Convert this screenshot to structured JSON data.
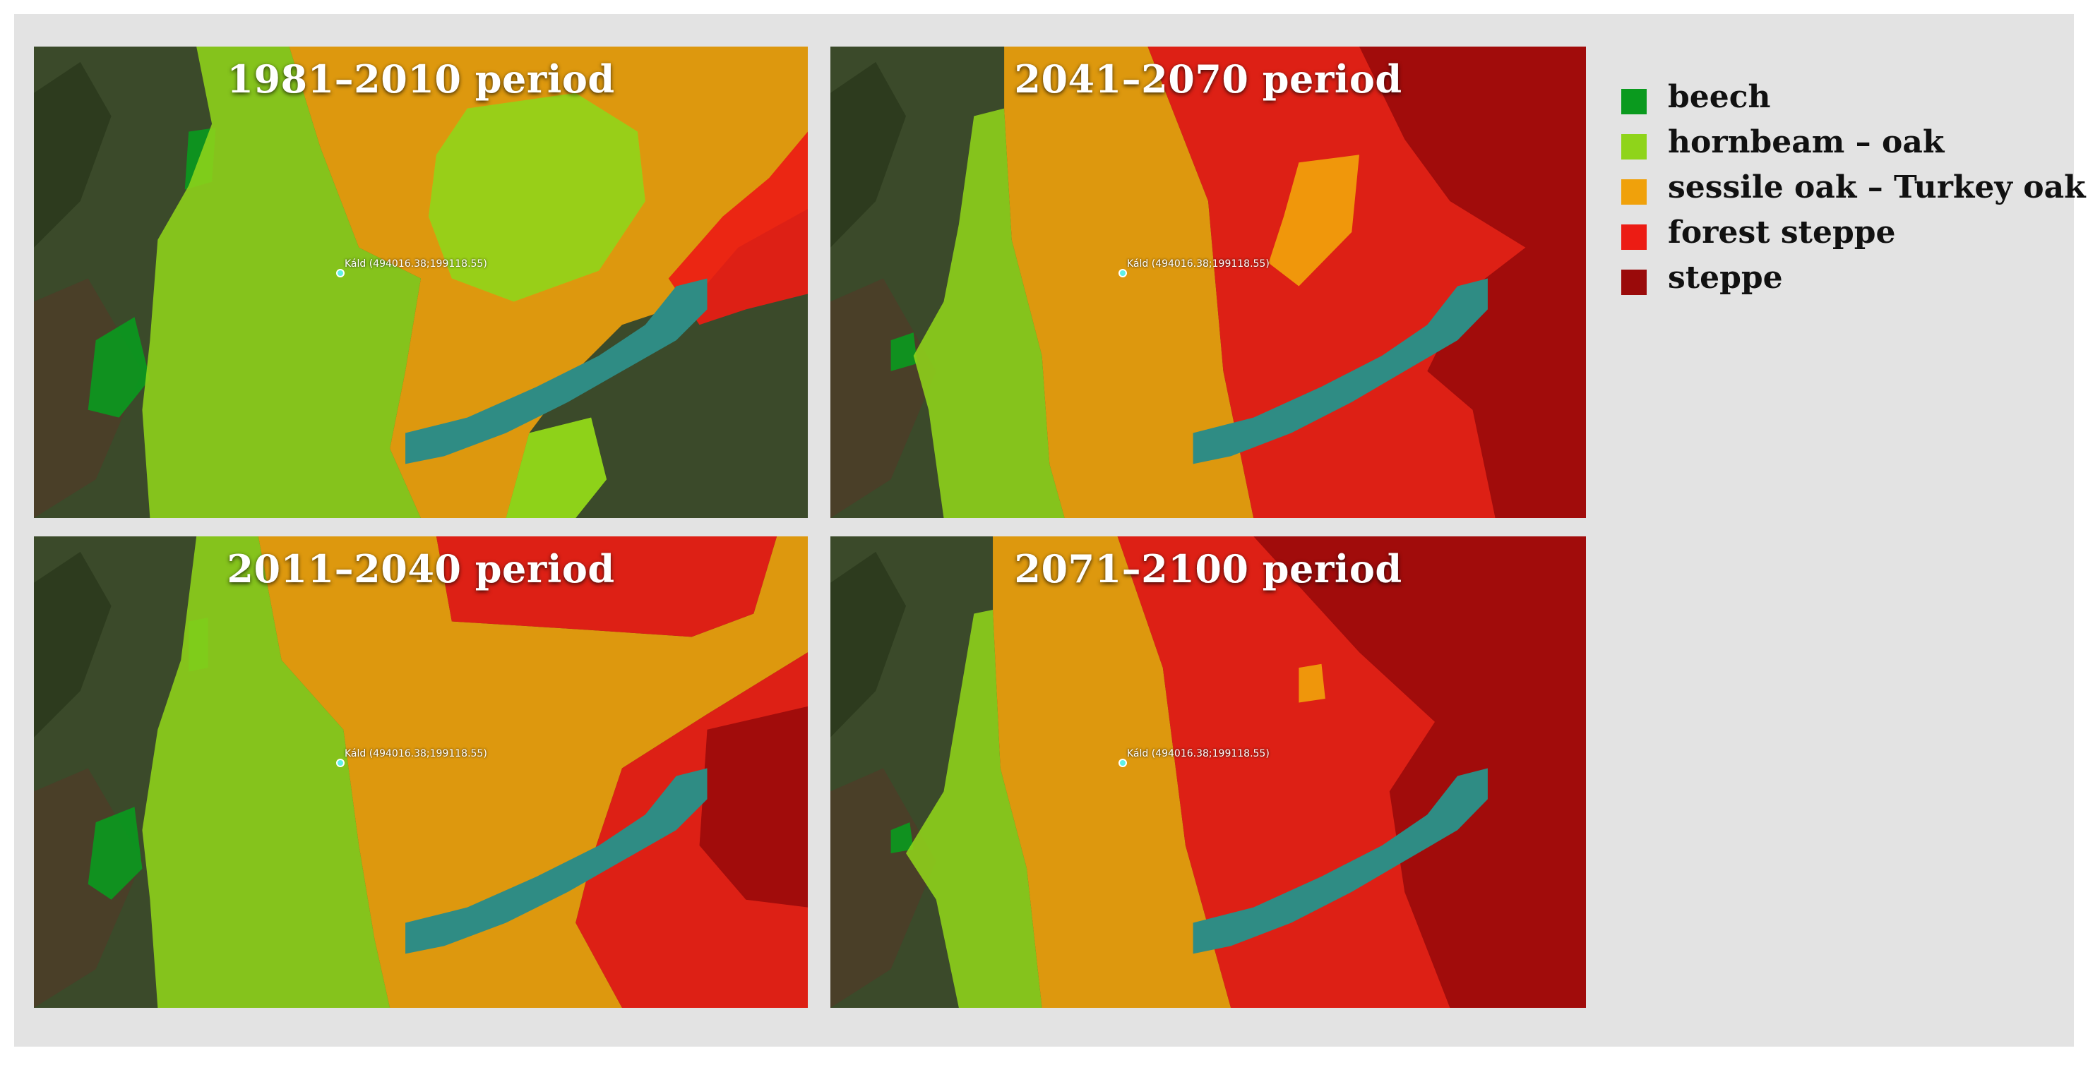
{
  "panels": [
    {
      "title": "1981–2010 period",
      "period": "1981-2010",
      "point_label": "Káld (494016.38;199118.55)"
    },
    {
      "title": "2041–2070 period",
      "period": "2041-2070",
      "point_label": "Káld (494016.38;199118.55)"
    },
    {
      "title": "2011–2040 period",
      "period": "2011-2040",
      "point_label": "Káld (494016.38;199118.55)"
    },
    {
      "title": "2071–2100 period",
      "period": "2071-2100",
      "point_label": "Káld (494016.38;199118.55)"
    }
  ],
  "legend": [
    {
      "label": "beech",
      "color": "#0a9a1e"
    },
    {
      "label": "hornbeam – oak",
      "color": "#8fd41a"
    },
    {
      "label": "sessile oak – Turkey oak",
      "color": "#f0a10b"
    },
    {
      "label": "forest steppe",
      "color": "#ec1c14"
    },
    {
      "label": "steppe",
      "color": "#9a0a0a"
    }
  ],
  "colors": {
    "background_frame": "#e3e3e3",
    "lake": "#2f8c84",
    "satellite_base": "#3d4a2a"
  }
}
